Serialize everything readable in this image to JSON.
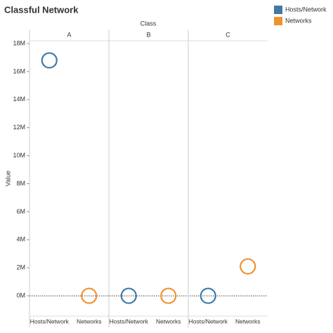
{
  "chart_data": {
    "type": "scatter",
    "title": "Classful Network",
    "facet_label": "Class",
    "facets": [
      "A",
      "B",
      "C"
    ],
    "ylabel": "Value",
    "series": [
      {
        "name": "Hosts/Network",
        "color": "#3f7aa5",
        "values": [
          16800000,
          0,
          0
        ]
      },
      {
        "name": "Networks",
        "color": "#f0922e",
        "values": [
          0,
          0,
          2100000
        ]
      }
    ],
    "ylim": [
      -1450000,
      18200000
    ],
    "yticks": [
      {
        "value": 0,
        "label": "0M"
      },
      {
        "value": 2000000,
        "label": "2M"
      },
      {
        "value": 4000000,
        "label": "4M"
      },
      {
        "value": 6000000,
        "label": "6M"
      },
      {
        "value": 8000000,
        "label": "8M"
      },
      {
        "value": 10000000,
        "label": "10M"
      },
      {
        "value": 12000000,
        "label": "12M"
      },
      {
        "value": 14000000,
        "label": "14M"
      },
      {
        "value": 16000000,
        "label": "16M"
      },
      {
        "value": 18000000,
        "label": "18M"
      }
    ],
    "legend": "right"
  }
}
